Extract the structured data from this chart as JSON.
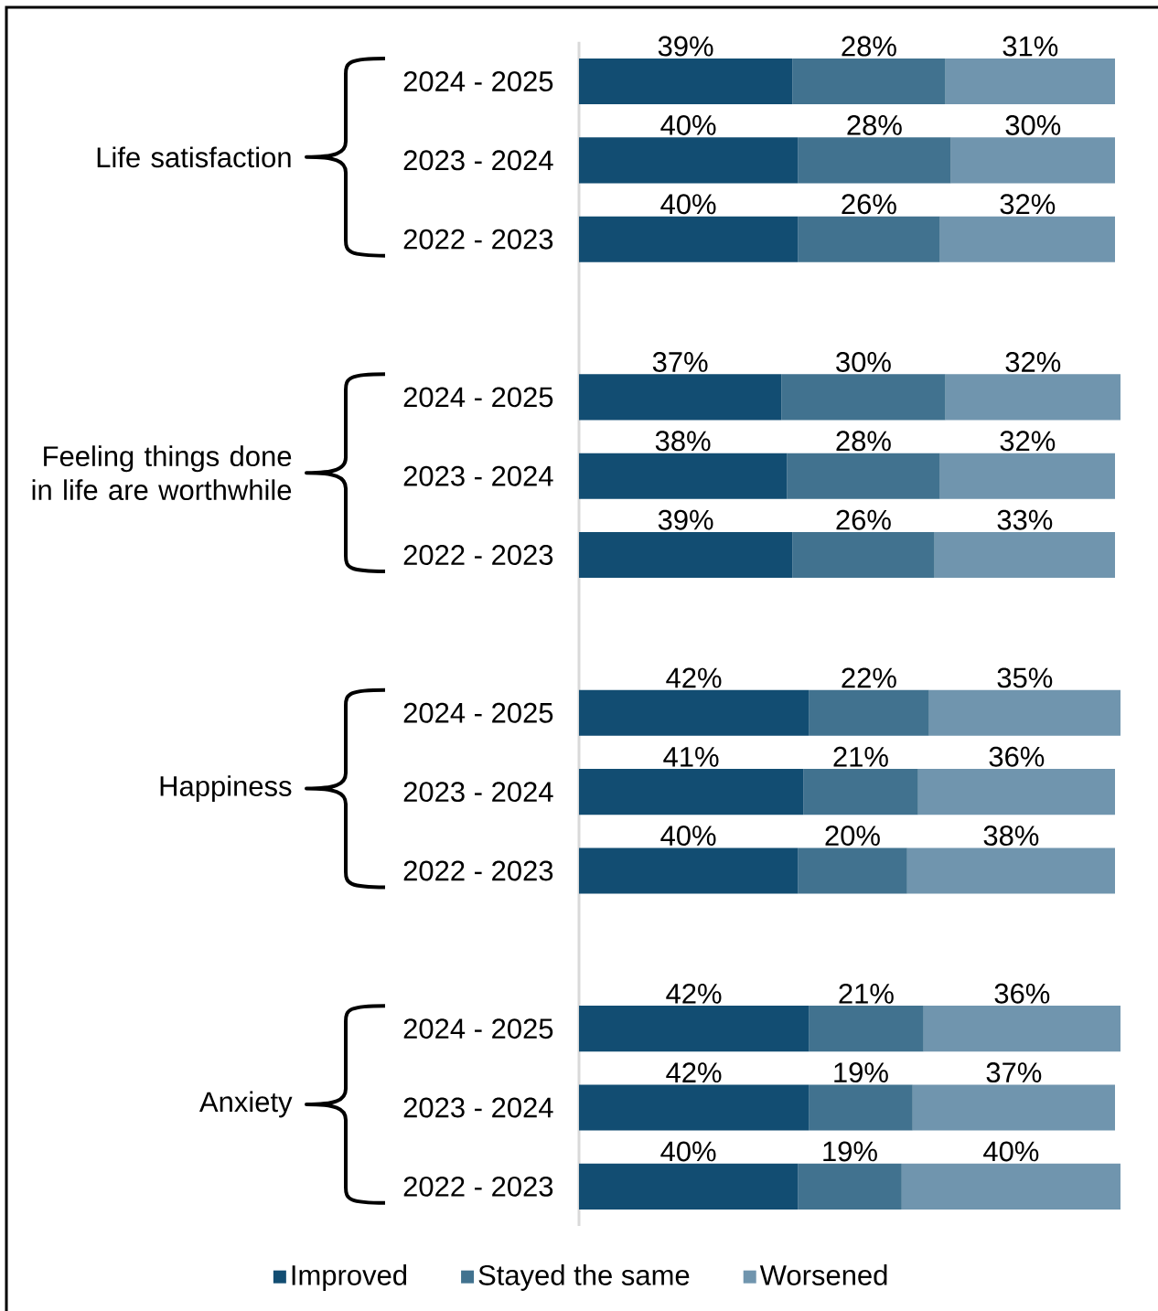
{
  "chart_data": {
    "type": "bar",
    "orientation": "horizontal",
    "stacked": true,
    "categories": [
      "2024 - 2025",
      "2023 - 2024",
      "2022 - 2023",
      "2024 - 2025",
      "2023 - 2024",
      "2022 - 2023",
      "2024 - 2025",
      "2023 - 2024",
      "2022 - 2023",
      "2024 - 2025",
      "2023 - 2024",
      "2022 - 2023"
    ],
    "series": [
      {
        "name": "Improved",
        "color": "#124d72",
        "values": [
          39,
          40,
          40,
          37,
          38,
          39,
          42,
          41,
          40,
          42,
          42,
          40
        ],
        "value_labels": [
          "39%",
          "40%",
          "40%",
          "37%",
          "38%",
          "39%",
          "42%",
          "41%",
          "40%",
          "42%",
          "42%",
          "40%"
        ]
      },
      {
        "name": "Stayed the same",
        "color": "#41728f",
        "values": [
          28,
          28,
          26,
          30,
          28,
          26,
          22,
          21,
          20,
          21,
          19,
          19
        ],
        "value_labels": [
          "28%",
          "28%",
          "26%",
          "30%",
          "28%",
          "26%",
          "22%",
          "21%",
          "20%",
          "21%",
          "19%",
          "19%"
        ]
      },
      {
        "name": "Worsened",
        "color": "#7095ae",
        "values": [
          31,
          30,
          32,
          32,
          32,
          33,
          35,
          36,
          38,
          36,
          37,
          40
        ],
        "value_labels": [
          "31%",
          "30%",
          "32%",
          "32%",
          "32%",
          "33%",
          "35%",
          "36%",
          "38%",
          "36%",
          "37%",
          "40%"
        ]
      }
    ],
    "tick_labels": "y",
    "legend": "bottom",
    "annotations": [
      "Life satisfaction",
      "Feeling things done in life are worthwhile",
      "Happiness",
      "Anxiety"
    ]
  }
}
